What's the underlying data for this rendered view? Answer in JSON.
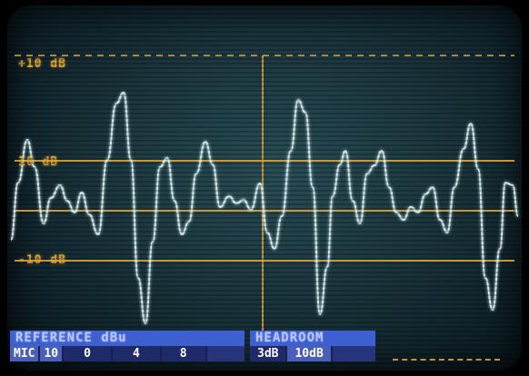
{
  "scale_labels": {
    "top": "+10 dB",
    "upper": "10 dB",
    "lower": "-10 dB"
  },
  "status": {
    "reference": {
      "title": "REFERENCE dBu",
      "values": [
        "MIC",
        "10",
        "0",
        "4",
        "8"
      ]
    },
    "headroom": {
      "title": "HEADROOM",
      "values": [
        "3dB",
        "10dB"
      ]
    }
  },
  "colors": {
    "trace": "#cfe9ec",
    "graticule": "#d8a23a",
    "screen": "#1d3a42",
    "panel_header": "#3e5fd0",
    "panel_body": "#27347c"
  }
}
